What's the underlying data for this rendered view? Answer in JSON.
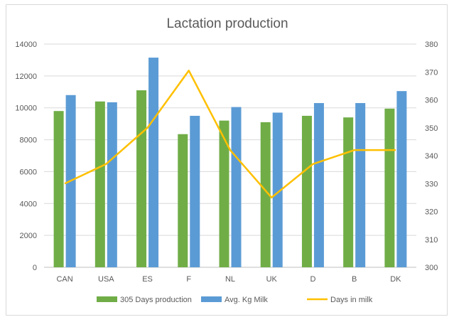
{
  "chart_data": {
    "type": "bar",
    "title": "Lactation production",
    "categories": [
      "CAN",
      "USA",
      "ES",
      "F",
      "NL",
      "UK",
      "D",
      "B",
      "DK"
    ],
    "series": [
      {
        "name": "305 Days production",
        "type": "bar",
        "axis": "left",
        "color": "#70ad47",
        "values": [
          9800,
          10400,
          11100,
          8350,
          9200,
          9100,
          9500,
          9400,
          9950
        ]
      },
      {
        "name": "Avg. Kg Milk",
        "type": "bar",
        "axis": "left",
        "color": "#5b9bd5",
        "values": [
          10800,
          10350,
          13150,
          9500,
          10050,
          9700,
          10300,
          10300,
          11050
        ]
      },
      {
        "name": "Days in milk",
        "type": "line",
        "axis": "right",
        "color": "#ffc000",
        "values": [
          330,
          337,
          350,
          370.5,
          342,
          325,
          337,
          342,
          342
        ]
      }
    ],
    "y_left": {
      "min": 0,
      "max": 14000,
      "step": 2000,
      "ticks": [
        "0",
        "2000",
        "4000",
        "6000",
        "8000",
        "10000",
        "12000",
        "14000"
      ]
    },
    "y_right": {
      "min": 300,
      "max": 380,
      "step": 10,
      "ticks": [
        "300",
        "310",
        "320",
        "330",
        "340",
        "350",
        "360",
        "370",
        "380"
      ]
    },
    "grid": true,
    "legend": "bottom"
  }
}
